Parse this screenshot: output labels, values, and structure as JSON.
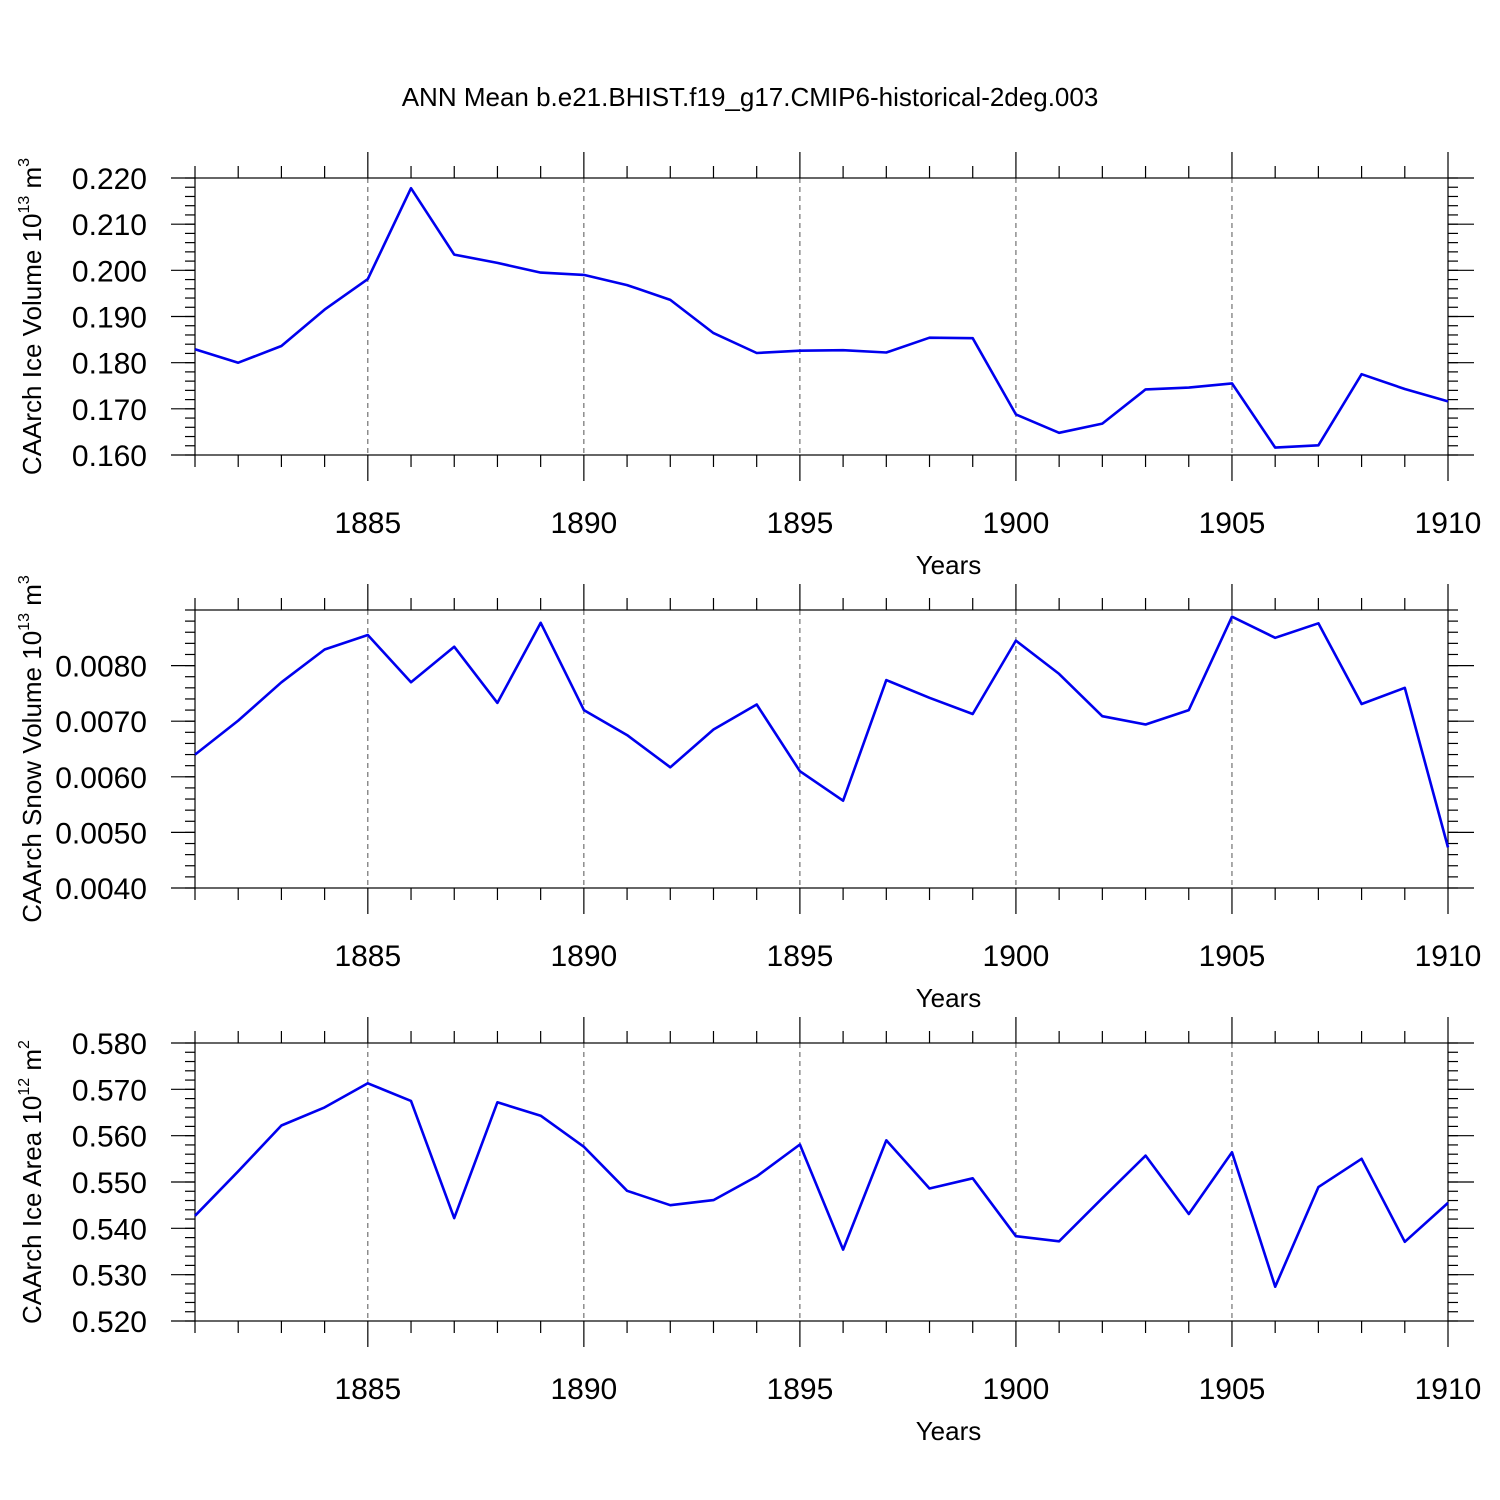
{
  "title": "ANN Mean b.e21.BHIST.f19_g17.CMIP6-historical-2deg.003",
  "colors": {
    "line": "#0000ee",
    "axis": "#000000",
    "grid": "#555555"
  },
  "chart_data": [
    {
      "type": "line",
      "title": "ANN Mean b.e21.BHIST.f19_g17.CMIP6-historical-2deg.003",
      "xlabel": "Years",
      "ylabel": {
        "text": "CAArch Ice Volume 10",
        "sup": "13",
        "unit": " m",
        "unit_sup": "3"
      },
      "xlim": [
        1881,
        1910
      ],
      "ylim": [
        0.16,
        0.22
      ],
      "xticks": [
        "1885",
        "1890",
        "1895",
        "1900",
        "1905",
        "1910"
      ],
      "yticks": [
        "0.160",
        "0.170",
        "0.180",
        "0.190",
        "0.200",
        "0.210",
        "0.220"
      ],
      "x": [
        1881,
        1882,
        1883,
        1884,
        1885,
        1886,
        1887,
        1888,
        1889,
        1890,
        1891,
        1892,
        1893,
        1894,
        1895,
        1896,
        1897,
        1898,
        1899,
        1900,
        1901,
        1902,
        1903,
        1904,
        1905,
        1906,
        1907,
        1908,
        1909,
        1910
      ],
      "values": [
        0.1829,
        0.18,
        0.1836,
        0.1915,
        0.1981,
        0.2178,
        0.2034,
        0.2016,
        0.1995,
        0.199,
        0.1968,
        0.1936,
        0.1864,
        0.1821,
        0.1826,
        0.1827,
        0.1822,
        0.1854,
        0.1853,
        0.1688,
        0.1648,
        0.1668,
        0.1742,
        0.1746,
        0.1755,
        0.1616,
        0.1621,
        0.1775,
        0.1743,
        0.1716
      ]
    },
    {
      "type": "line",
      "xlabel": "Years",
      "ylabel": {
        "text": "CAArch Snow Volume 10",
        "sup": "13",
        "unit": " m",
        "unit_sup": "3"
      },
      "xlim": [
        1881,
        1910
      ],
      "ylim": [
        0.004,
        0.009
      ],
      "xticks": [
        "1885",
        "1890",
        "1895",
        "1900",
        "1905",
        "1910"
      ],
      "yticks": [
        "0.0040",
        "0.0050",
        "0.0060",
        "0.0070",
        "0.0080"
      ],
      "x": [
        1881,
        1882,
        1883,
        1884,
        1885,
        1886,
        1887,
        1888,
        1889,
        1890,
        1891,
        1892,
        1893,
        1894,
        1895,
        1896,
        1897,
        1898,
        1899,
        1900,
        1901,
        1902,
        1903,
        1904,
        1905,
        1906,
        1907,
        1908,
        1909,
        1910
      ],
      "values": [
        0.0064,
        0.00701,
        0.0077,
        0.00829,
        0.00855,
        0.0077,
        0.00834,
        0.00733,
        0.00877,
        0.0072,
        0.00675,
        0.00617,
        0.00685,
        0.0073,
        0.0061,
        0.00557,
        0.00774,
        0.00742,
        0.00713,
        0.00845,
        0.00785,
        0.00709,
        0.00694,
        0.0072,
        0.00888,
        0.0085,
        0.00876,
        0.00731,
        0.0076,
        0.00473
      ]
    },
    {
      "type": "line",
      "xlabel": "Years",
      "ylabel": {
        "text": "CAArch Ice Area 10",
        "sup": "12",
        "unit": " m",
        "unit_sup": "2"
      },
      "xlim": [
        1881,
        1910
      ],
      "ylim": [
        0.52,
        0.58
      ],
      "xticks": [
        "1885",
        "1890",
        "1895",
        "1900",
        "1905",
        "1910"
      ],
      "yticks": [
        "0.520",
        "0.530",
        "0.540",
        "0.550",
        "0.560",
        "0.570",
        "0.580"
      ],
      "x": [
        1881,
        1882,
        1883,
        1884,
        1885,
        1886,
        1887,
        1888,
        1889,
        1890,
        1891,
        1892,
        1893,
        1894,
        1895,
        1896,
        1897,
        1898,
        1899,
        1900,
        1901,
        1902,
        1903,
        1904,
        1905,
        1906,
        1907,
        1908,
        1909,
        1910
      ],
      "values": [
        0.5427,
        0.5523,
        0.5622,
        0.5661,
        0.5713,
        0.5675,
        0.5422,
        0.5672,
        0.5643,
        0.5576,
        0.5481,
        0.545,
        0.5461,
        0.5512,
        0.5581,
        0.5354,
        0.559,
        0.5486,
        0.5508,
        0.5383,
        0.5372,
        0.5465,
        0.5557,
        0.5431,
        0.5564,
        0.5274,
        0.5489,
        0.555,
        0.5371,
        0.5455
      ]
    }
  ]
}
